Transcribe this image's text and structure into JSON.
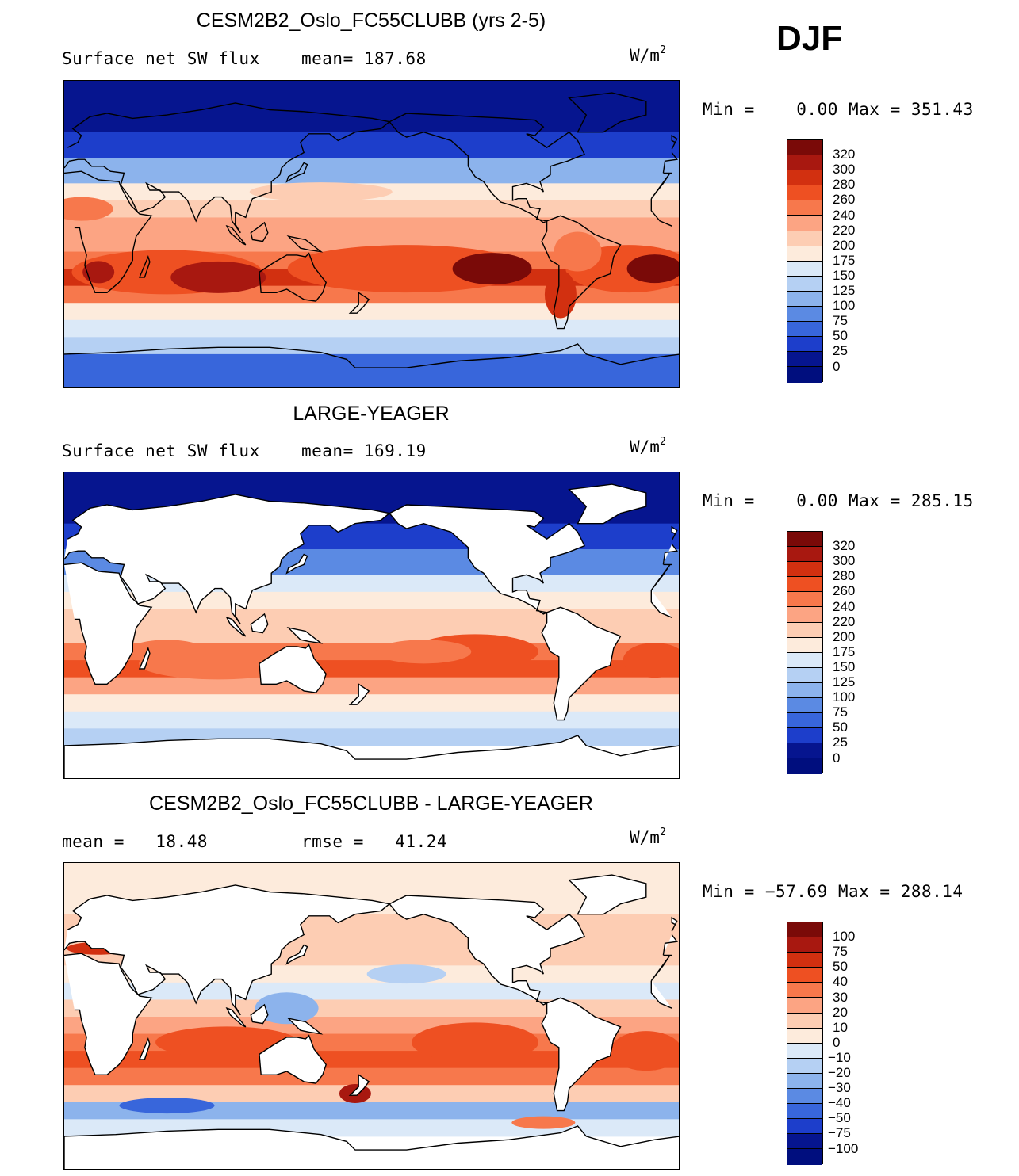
{
  "season": "DJF",
  "panels": [
    {
      "title": "CESM2B2_Oslo_FC55CLUBB (yrs 2-5)",
      "left_label": "Surface net SW flux",
      "mid_label": "mean= 187.68",
      "units": "W/m",
      "units_sup": "2",
      "minmax": "Min =    0.00 Max = 351.43",
      "colorbar": {
        "labels": [
          "320",
          "300",
          "280",
          "260",
          "240",
          "220",
          "200",
          "175",
          "150",
          "125",
          "100",
          "75",
          "50",
          "25",
          "0"
        ],
        "colors": [
          "#7a0a08",
          "#a81810",
          "#d23010",
          "#ee5022",
          "#f7784c",
          "#fca483",
          "#fdcdb3",
          "#fdebdc",
          "#dbe9f8",
          "#b5d0f3",
          "#8cb3ec",
          "#5b8ae3",
          "#3866db",
          "#1d3ecb",
          "#06158f",
          "#000e7e"
        ]
      }
    },
    {
      "title": "LARGE-YEAGER",
      "left_label": "Surface net SW flux",
      "mid_label": "mean= 169.19",
      "units": "W/m",
      "units_sup": "2",
      "minmax": "Min =    0.00 Max = 285.15",
      "colorbar": {
        "labels": [
          "320",
          "300",
          "280",
          "260",
          "240",
          "220",
          "200",
          "175",
          "150",
          "125",
          "100",
          "75",
          "50",
          "25",
          "0"
        ],
        "colors": [
          "#7a0a08",
          "#a81810",
          "#d23010",
          "#ee5022",
          "#f7784c",
          "#fca483",
          "#fdcdb3",
          "#fdebdc",
          "#dbe9f8",
          "#b5d0f3",
          "#8cb3ec",
          "#5b8ae3",
          "#3866db",
          "#1d3ecb",
          "#06158f",
          "#000e7e"
        ]
      }
    },
    {
      "title": "CESM2B2_Oslo_FC55CLUBB - LARGE-YEAGER",
      "left_label": "mean =   18.48",
      "mid_label": "rmse =   41.24",
      "units": "W/m",
      "units_sup": "2",
      "minmax": "Min = −57.69 Max = 288.14",
      "colorbar": {
        "labels": [
          "100",
          "75",
          "50",
          "40",
          "30",
          "20",
          "10",
          "0",
          "−10",
          "−20",
          "−30",
          "−40",
          "−50",
          "−75",
          "−100"
        ],
        "colors": [
          "#7a0a08",
          "#a81810",
          "#d23010",
          "#ee5022",
          "#f7784c",
          "#fca483",
          "#fdcdb3",
          "#fdebdc",
          "#dbe9f8",
          "#b5d0f3",
          "#8cb3ec",
          "#5b8ae3",
          "#3866db",
          "#1d3ecb",
          "#06158f",
          "#000e7e"
        ]
      }
    }
  ],
  "chart_data": [
    {
      "type": "heatmap",
      "title": "CESM2B2_Oslo_FC55CLUBB (yrs 2-5)",
      "variable": "Surface net SW flux",
      "units": "W/m2",
      "mean": 187.68,
      "min": 0.0,
      "max": 351.43,
      "contour_levels": [
        0,
        25,
        50,
        75,
        100,
        125,
        150,
        175,
        200,
        220,
        240,
        260,
        280,
        300,
        320
      ],
      "fields": [
        {
          "name": "zonal_bands",
          "lat_profile": [
            [
              90,
              0
            ],
            [
              60,
              25
            ],
            [
              45,
              100
            ],
            [
              30,
              175
            ],
            [
              20,
              210
            ],
            [
              10,
              230
            ],
            [
              0,
              230
            ],
            [
              -10,
              250
            ],
            [
              -20,
              280
            ],
            [
              -30,
              250
            ],
            [
              -40,
              190
            ],
            [
              -50,
              150
            ],
            [
              -60,
              140
            ],
            [
              -70,
              60
            ],
            [
              -90,
              30
            ]
          ]
        },
        {
          "name": "maxima",
          "points": [
            [
              -20,
              30,
              300
            ],
            [
              -20,
              130,
              300
            ],
            [
              -20,
              250,
              330
            ],
            [
              -20,
              340,
              330
            ]
          ]
        }
      ]
    },
    {
      "type": "heatmap",
      "title": "LARGE-YEAGER",
      "variable": "Surface net SW flux",
      "units": "W/m2",
      "mean": 169.19,
      "min": 0.0,
      "max": 285.15,
      "contour_levels": [
        0,
        25,
        50,
        75,
        100,
        125,
        150,
        175,
        200,
        220,
        240,
        260,
        280,
        300,
        320
      ],
      "land_masked": true,
      "fields": [
        {
          "name": "zonal_bands",
          "lat_profile": [
            [
              90,
              0
            ],
            [
              60,
              30
            ],
            [
              45,
              80
            ],
            [
              30,
              150
            ],
            [
              20,
              190
            ],
            [
              10,
              210
            ],
            [
              0,
              215
            ],
            [
              -10,
              245
            ],
            [
              -20,
              260
            ],
            [
              -30,
              225
            ],
            [
              -40,
              180
            ],
            [
              -50,
              160
            ],
            [
              -60,
              125
            ],
            [
              -70,
              40
            ]
          ]
        },
        {
          "name": "maxima",
          "points": [
            [
              -20,
              100,
              260
            ],
            [
              -15,
              240,
              270
            ],
            [
              -20,
              345,
              270
            ]
          ]
        }
      ]
    },
    {
      "type": "heatmap",
      "title": "CESM2B2_Oslo_FC55CLUBB - LARGE-YEAGER",
      "units": "W/m2",
      "mean": 18.48,
      "rmse": 41.24,
      "min": -57.69,
      "max": 288.14,
      "contour_levels": [
        -100,
        -75,
        -50,
        -40,
        -30,
        -20,
        -10,
        0,
        10,
        20,
        30,
        40,
        50,
        75,
        100
      ],
      "land_masked": true,
      "fields": [
        {
          "name": "zonal_bands",
          "lat_profile": [
            [
              90,
              5
            ],
            [
              60,
              10
            ],
            [
              45,
              10
            ],
            [
              30,
              5
            ],
            [
              20,
              -10
            ],
            [
              10,
              15
            ],
            [
              0,
              20
            ],
            [
              -10,
              35
            ],
            [
              -20,
              40
            ],
            [
              -30,
              30
            ],
            [
              -40,
              15
            ],
            [
              -50,
              -25
            ],
            [
              -60,
              -10
            ],
            [
              -70,
              20
            ]
          ]
        },
        {
          "name": "extremes",
          "points": [
            [
              -15,
              100,
              60
            ],
            [
              -15,
              240,
              60
            ],
            [
              -45,
              170,
              90
            ],
            [
              -50,
              60,
              -45
            ]
          ]
        }
      ]
    }
  ]
}
